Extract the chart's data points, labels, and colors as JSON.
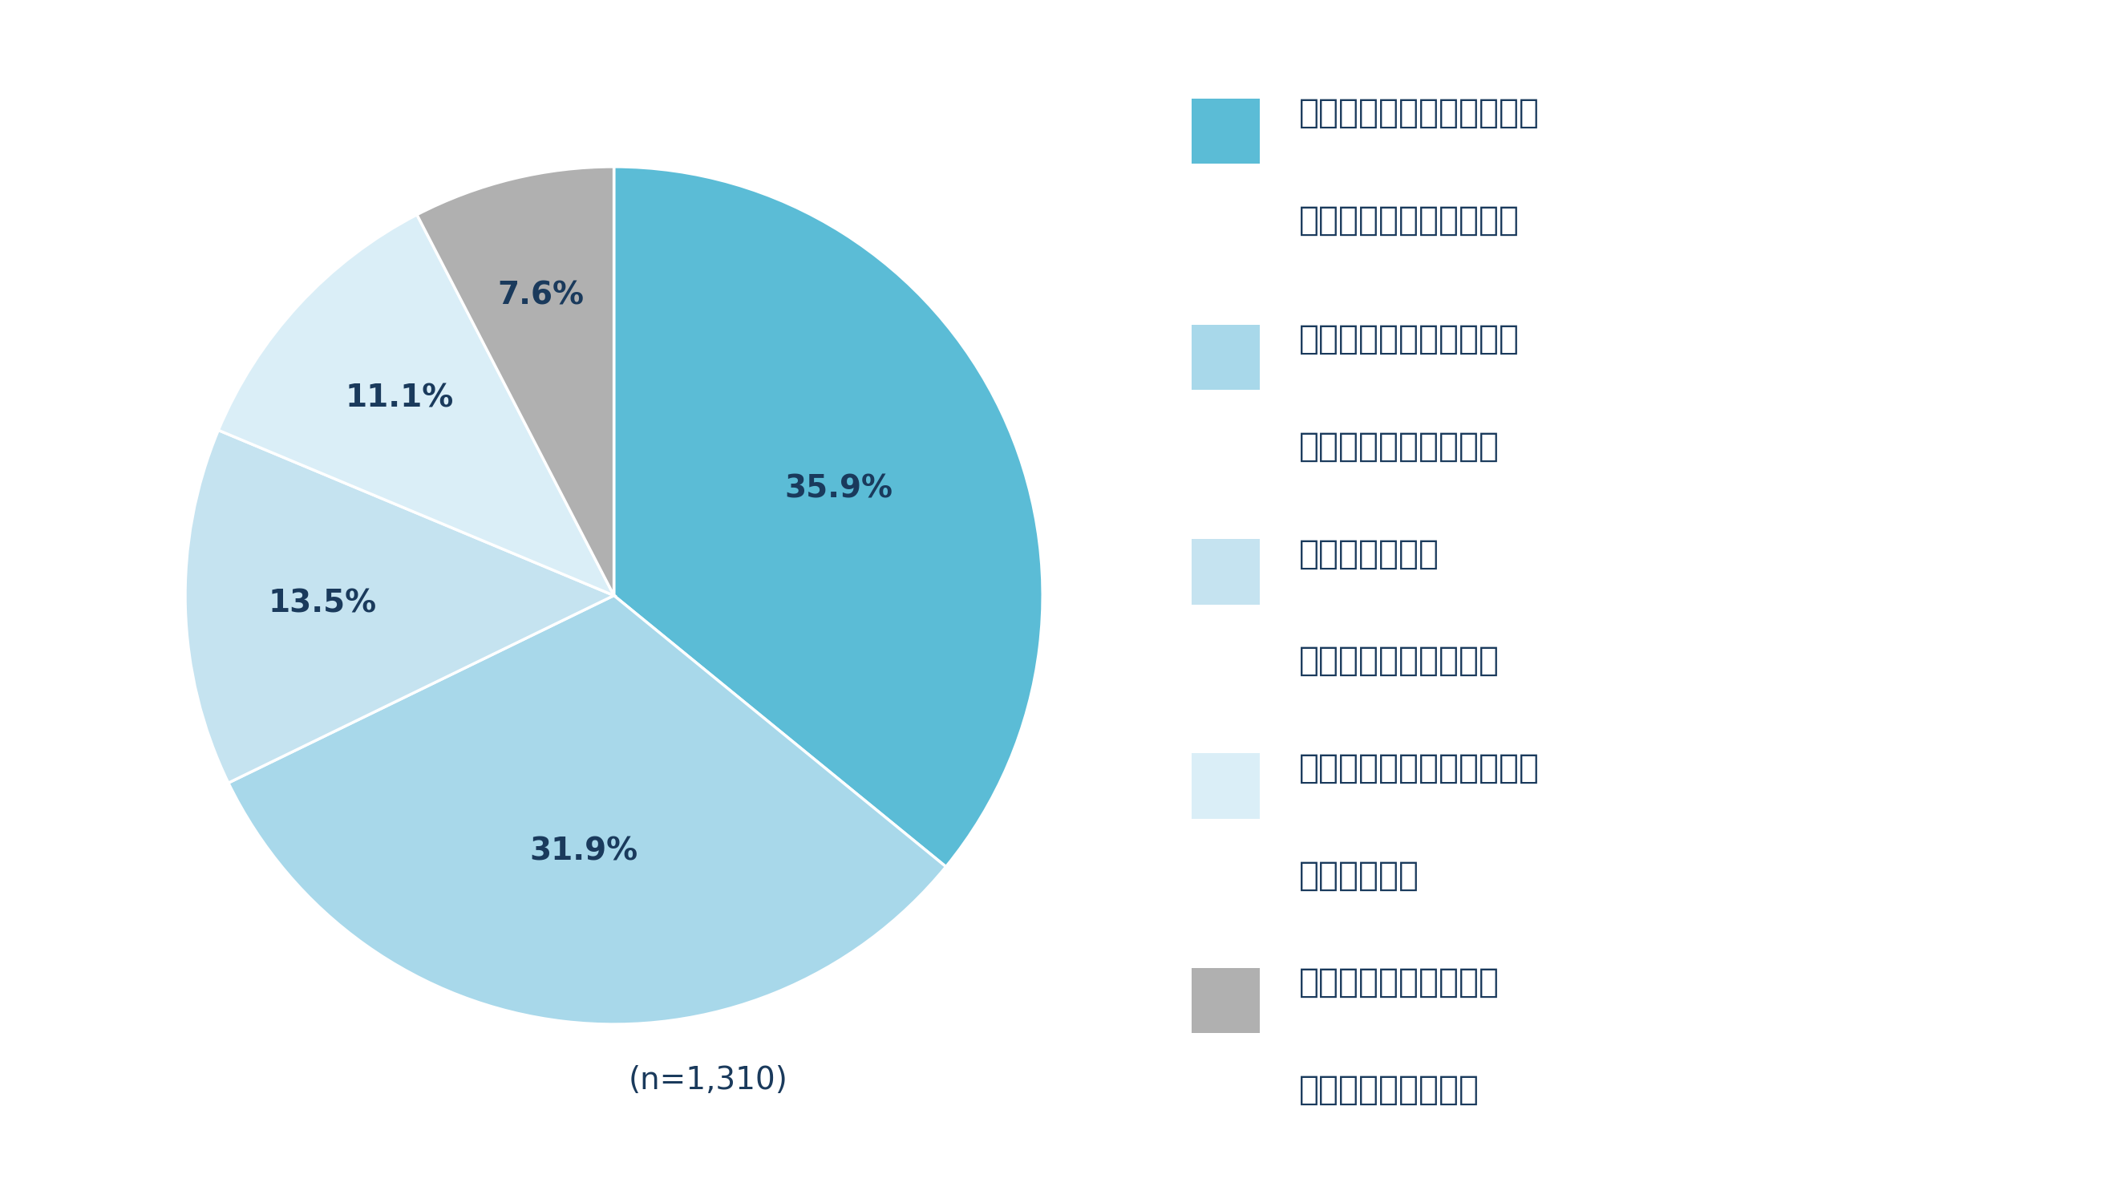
{
  "slices": [
    35.9,
    31.9,
    13.5,
    11.1,
    7.6
  ],
  "labels": [
    "35.9%",
    "31.9%",
    "13.5%",
    "11.1%",
    "7.6%"
  ],
  "colors": [
    "#5bbcd6",
    "#a8d8ea",
    "#c5e3f0",
    "#daeef7",
    "#b0b0b0"
  ],
  "legend_colors": [
    "#5bbcd6",
    "#a8d8ea",
    "#c5e3f0",
    "#daeef7",
    "#b0b0b0"
  ],
  "legend_lines": [
    [
      "残業時間が増えると健康や",
      "私生活に影響が出やすい"
    ],
    [
      "残業時間が減ると収入が",
      "減少する可能性がある"
    ],
    [
      "会社から残業を",
      "求められることがある"
    ],
    [
      "残業時間の管理が厳格で、",
      "柔軟性がない"
    ],
    [
      "残業代の計算や申請が",
      "煩雑で手間がかかる"
    ]
  ],
  "n_label": "(n=1,310)",
  "background_color": "#ffffff",
  "text_color": "#1a3a5c",
  "label_fontsize": 28,
  "legend_fontsize": 30,
  "n_fontsize": 28,
  "startangle": 90
}
